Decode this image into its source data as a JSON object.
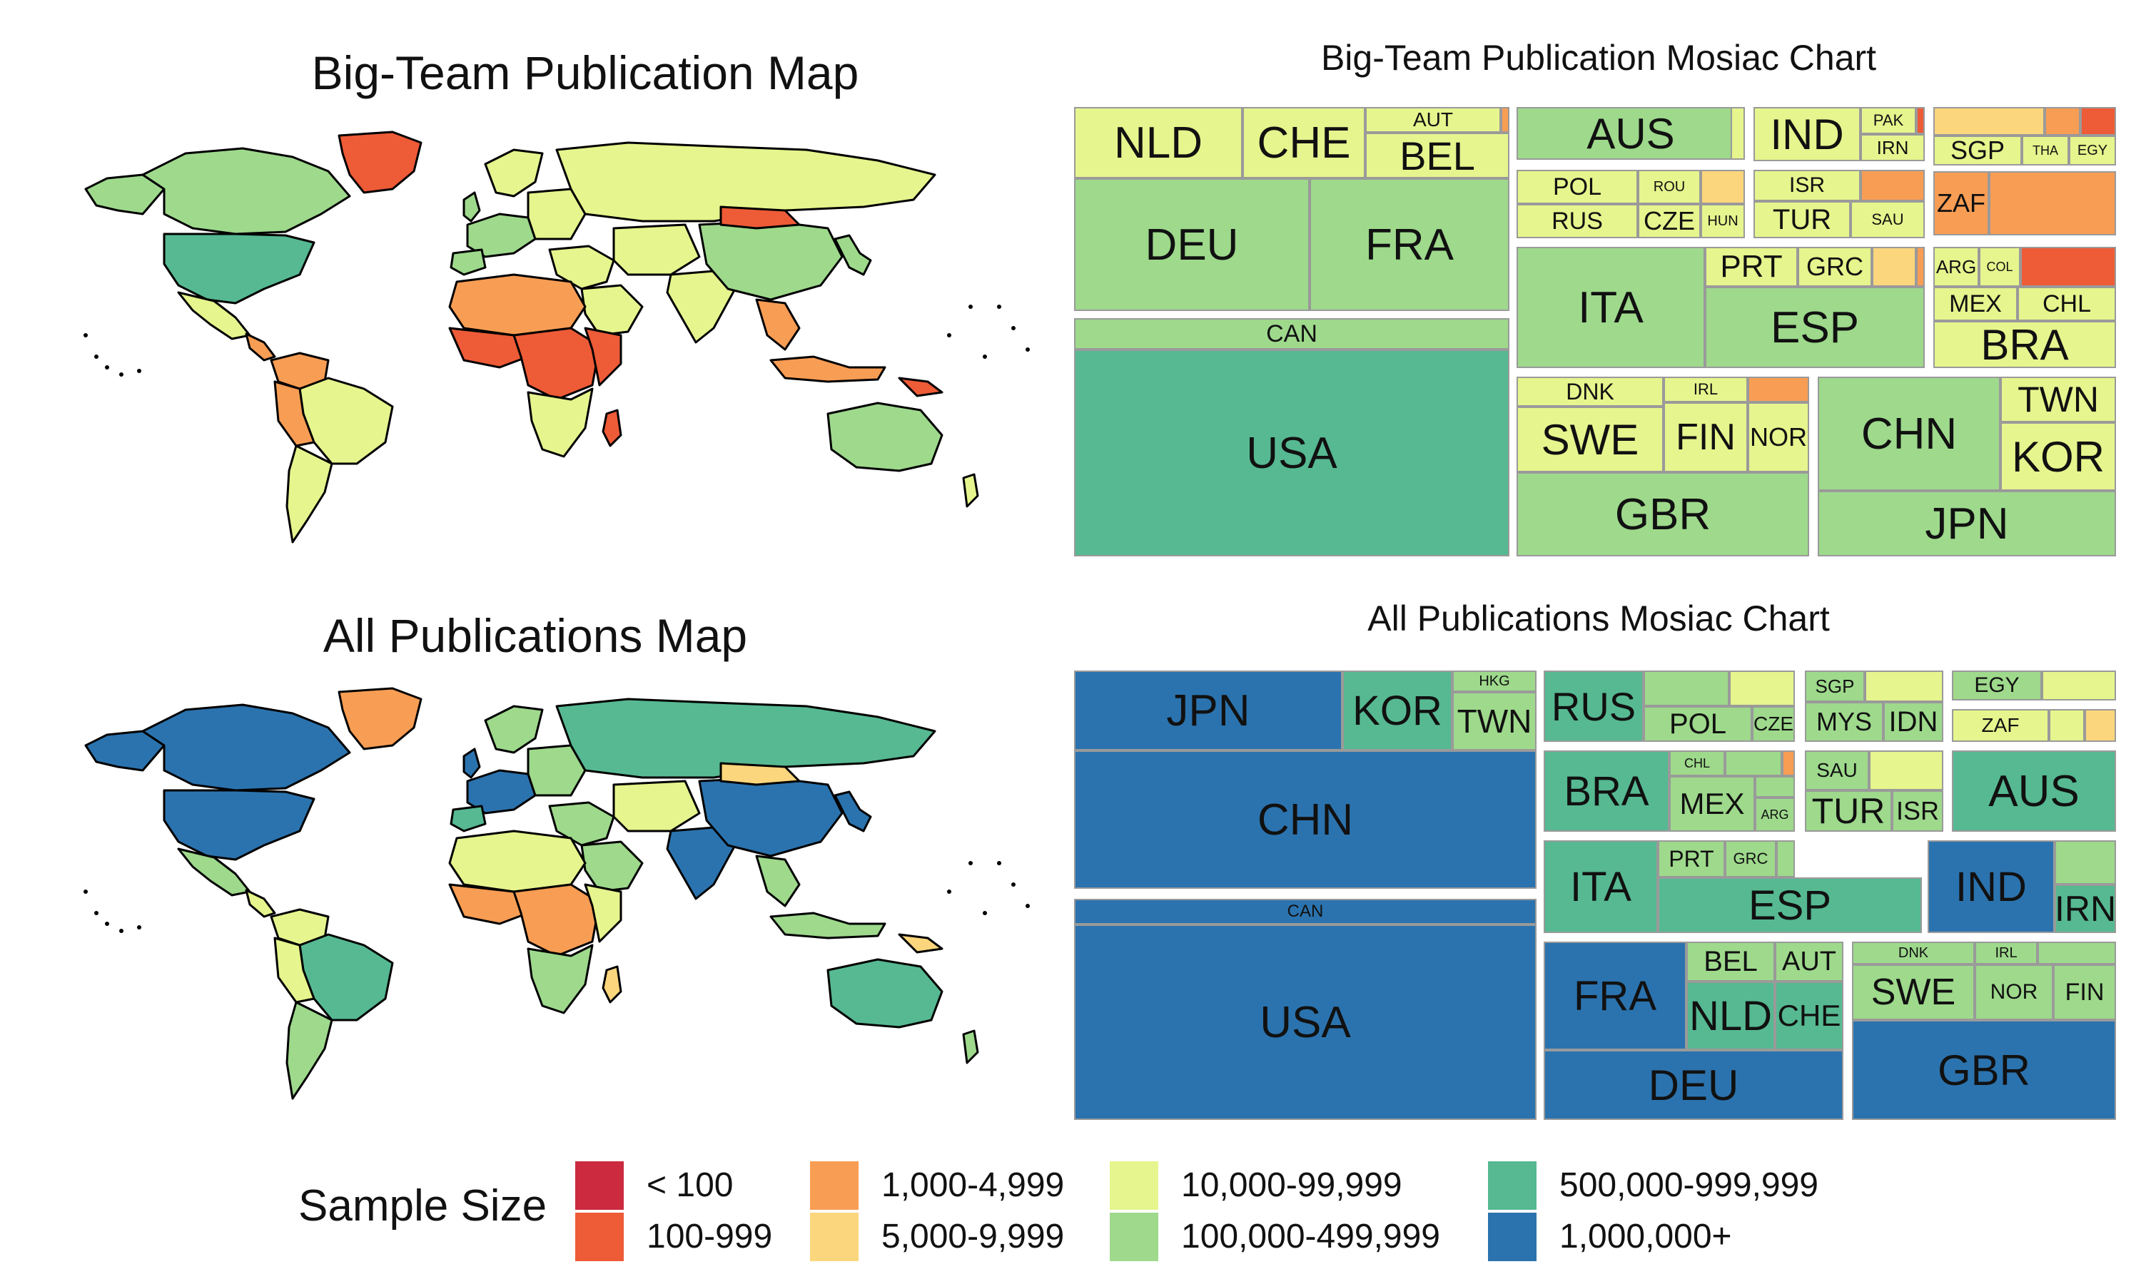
{
  "colors": {
    "lt100": "#cb2a3f",
    "c100_999": "#ee5b37",
    "c1000_4999": "#f89d54",
    "c5000_9999": "#fcd67c",
    "c10k_99k": "#e6f58d",
    "c100k_499k": "#9ed98c",
    "c500k_999k": "#56b992",
    "c1m": "#2b73ae"
  },
  "maps": {
    "big": {
      "title": "Big-Team Publication Map"
    },
    "all": {
      "title": "All Publications Map"
    }
  },
  "mosaic": {
    "big": {
      "title": "Big-Team Publication Mosiac Chart",
      "tiles": [
        {
          "label": "NLD",
          "cat": "c10k_99k"
        },
        {
          "label": "CHE",
          "cat": "c10k_99k"
        },
        {
          "label": "AUT",
          "cat": "c10k_99k"
        },
        {
          "label": "BEL",
          "cat": "c10k_99k"
        },
        {
          "label": "DEU",
          "cat": "c100k_499k"
        },
        {
          "label": "FRA",
          "cat": "c100k_499k"
        },
        {
          "label": "CAN",
          "cat": "c100k_499k"
        },
        {
          "label": "USA",
          "cat": "c500k_999k"
        },
        {
          "label": "AUS",
          "cat": "c100k_499k"
        },
        {
          "label": "IND",
          "cat": "c10k_99k"
        },
        {
          "label": "PAK",
          "cat": "c10k_99k"
        },
        {
          "label": "IRN",
          "cat": "c10k_99k"
        },
        {
          "label": "SGP",
          "cat": "c10k_99k"
        },
        {
          "label": "THA",
          "cat": "c10k_99k"
        },
        {
          "label": "EGY",
          "cat": "c10k_99k"
        },
        {
          "label": "POL",
          "cat": "c10k_99k"
        },
        {
          "label": "ROU",
          "cat": "c10k_99k"
        },
        {
          "label": "RUS",
          "cat": "c10k_99k"
        },
        {
          "label": "CZE",
          "cat": "c10k_99k"
        },
        {
          "label": "HUN",
          "cat": "c10k_99k"
        },
        {
          "label": "ISR",
          "cat": "c10k_99k"
        },
        {
          "label": "TUR",
          "cat": "c10k_99k"
        },
        {
          "label": "SAU",
          "cat": "c10k_99k"
        },
        {
          "label": "ZAF",
          "cat": "c1000_4999"
        },
        {
          "label": "PRT",
          "cat": "c10k_99k"
        },
        {
          "label": "GRC",
          "cat": "c10k_99k"
        },
        {
          "label": "ITA",
          "cat": "c100k_499k"
        },
        {
          "label": "ESP",
          "cat": "c100k_499k"
        },
        {
          "label": "ARG",
          "cat": "c10k_99k"
        },
        {
          "label": "COL",
          "cat": "c10k_99k"
        },
        {
          "label": "MEX",
          "cat": "c10k_99k"
        },
        {
          "label": "CHL",
          "cat": "c10k_99k"
        },
        {
          "label": "BRA",
          "cat": "c10k_99k"
        },
        {
          "label": "DNK",
          "cat": "c10k_99k"
        },
        {
          "label": "IRL",
          "cat": "c10k_99k"
        },
        {
          "label": "SWE",
          "cat": "c10k_99k"
        },
        {
          "label": "FIN",
          "cat": "c10k_99k"
        },
        {
          "label": "NOR",
          "cat": "c10k_99k"
        },
        {
          "label": "GBR",
          "cat": "c100k_499k"
        },
        {
          "label": "CHN",
          "cat": "c100k_499k"
        },
        {
          "label": "TWN",
          "cat": "c10k_99k"
        },
        {
          "label": "KOR",
          "cat": "c10k_99k"
        },
        {
          "label": "JPN",
          "cat": "c100k_499k"
        }
      ]
    },
    "all": {
      "title": "All Publications Mosiac Chart",
      "tiles": [
        {
          "label": "JPN",
          "cat": "c1m"
        },
        {
          "label": "KOR",
          "cat": "c500k_999k"
        },
        {
          "label": "HKG",
          "cat": "c100k_499k"
        },
        {
          "label": "TWN",
          "cat": "c100k_499k"
        },
        {
          "label": "CHN",
          "cat": "c1m"
        },
        {
          "label": "CAN",
          "cat": "c1m"
        },
        {
          "label": "USA",
          "cat": "c1m"
        },
        {
          "label": "RUS",
          "cat": "c500k_999k"
        },
        {
          "label": "POL",
          "cat": "c100k_499k"
        },
        {
          "label": "CZE",
          "cat": "c100k_499k"
        },
        {
          "label": "SGP",
          "cat": "c100k_499k"
        },
        {
          "label": "MYS",
          "cat": "c100k_499k"
        },
        {
          "label": "IDN",
          "cat": "c100k_499k"
        },
        {
          "label": "EGY",
          "cat": "c100k_499k"
        },
        {
          "label": "ZAF",
          "cat": "c10k_99k"
        },
        {
          "label": "BRA",
          "cat": "c500k_999k"
        },
        {
          "label": "CHL",
          "cat": "c100k_499k"
        },
        {
          "label": "MEX",
          "cat": "c100k_499k"
        },
        {
          "label": "ARG",
          "cat": "c100k_499k"
        },
        {
          "label": "SAU",
          "cat": "c100k_499k"
        },
        {
          "label": "TUR",
          "cat": "c100k_499k"
        },
        {
          "label": "ISR",
          "cat": "c100k_499k"
        },
        {
          "label": "AUS",
          "cat": "c500k_999k"
        },
        {
          "label": "ITA",
          "cat": "c500k_999k"
        },
        {
          "label": "PRT",
          "cat": "c100k_499k"
        },
        {
          "label": "GRC",
          "cat": "c100k_499k"
        },
        {
          "label": "ESP",
          "cat": "c500k_999k"
        },
        {
          "label": "IND",
          "cat": "c1m"
        },
        {
          "label": "IRN",
          "cat": "c500k_999k"
        },
        {
          "label": "FRA",
          "cat": "c1m"
        },
        {
          "label": "BEL",
          "cat": "c100k_499k"
        },
        {
          "label": "AUT",
          "cat": "c100k_499k"
        },
        {
          "label": "NLD",
          "cat": "c500k_999k"
        },
        {
          "label": "CHE",
          "cat": "c500k_999k"
        },
        {
          "label": "DEU",
          "cat": "c1m"
        },
        {
          "label": "DNK",
          "cat": "c100k_499k"
        },
        {
          "label": "IRL",
          "cat": "c100k_499k"
        },
        {
          "label": "SWE",
          "cat": "c100k_499k"
        },
        {
          "label": "NOR",
          "cat": "c100k_499k"
        },
        {
          "label": "FIN",
          "cat": "c100k_499k"
        },
        {
          "label": "GBR",
          "cat": "c1m"
        }
      ]
    }
  },
  "legend": {
    "title": "Sample Size",
    "items": [
      {
        "label": "< 100",
        "cat": "lt100"
      },
      {
        "label": "100-999",
        "cat": "c100_999"
      },
      {
        "label": "1,000-4,999",
        "cat": "c1000_4999"
      },
      {
        "label": "5,000-9,999",
        "cat": "c5000_9999"
      },
      {
        "label": "10,000-99,999",
        "cat": "c10k_99k"
      },
      {
        "label": "100,000-499,999",
        "cat": "c100k_499k"
      },
      {
        "label": "500,000-999,999",
        "cat": "c500k_999k"
      },
      {
        "label": "1,000,000+",
        "cat": "c1m"
      }
    ]
  }
}
